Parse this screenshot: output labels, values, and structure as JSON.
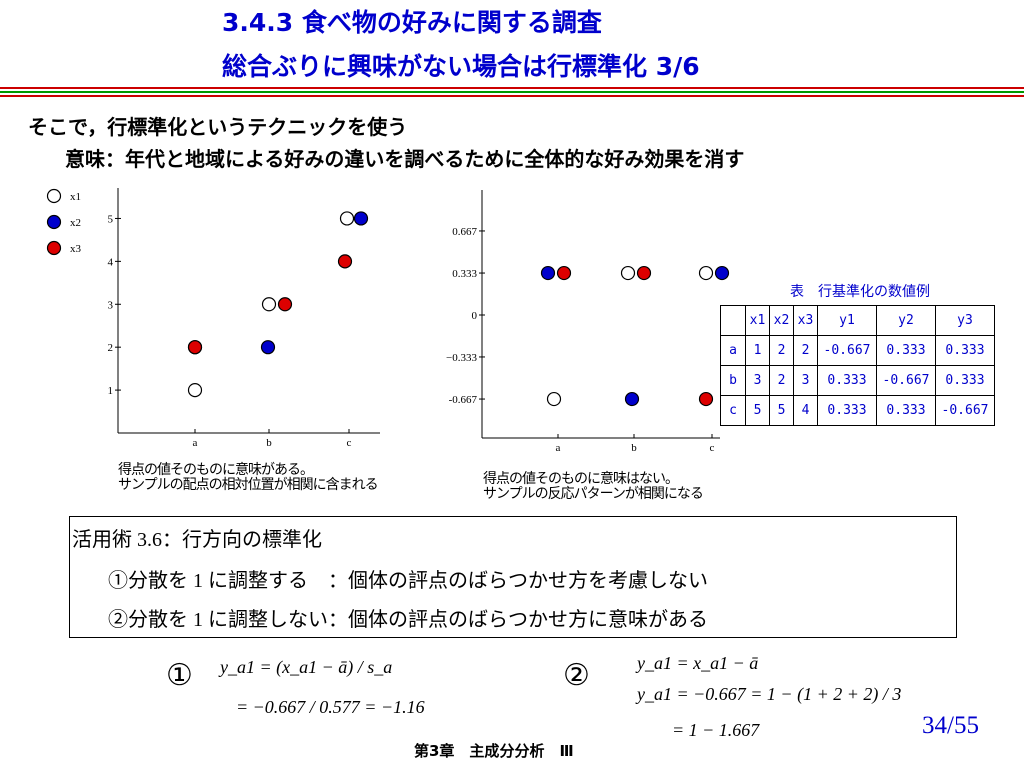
{
  "title": {
    "line1": "3.4.3  食べ物の好みに関する調査",
    "line2": "総合ぶりに興味がない場合は行標準化  3/6"
  },
  "intro": {
    "line1": "そこで，行標準化というテクニックを使う",
    "line2": "意味：年代と地域による好みの違いを調べるために全体的な好み効果を消す"
  },
  "colors": {
    "title": "#0000cc",
    "rule_red": "#cc0000",
    "rule_green": "#009900",
    "x1": "#ffffff",
    "x2": "#0000cc",
    "x3": "#dd0000"
  },
  "chart_data": [
    {
      "type": "scatter",
      "categories": [
        "a",
        "b",
        "c"
      ],
      "ylim": [
        0,
        5.5
      ],
      "yticks": [
        1,
        2,
        3,
        4,
        5
      ],
      "legend": {
        "placement": "top-left",
        "entries": [
          "x1",
          "x2",
          "x3"
        ]
      },
      "series": [
        {
          "name": "x1",
          "values": [
            1,
            3,
            5
          ]
        },
        {
          "name": "x2",
          "values": [
            2,
            2,
            5
          ]
        },
        {
          "name": "x3",
          "values": [
            2,
            3,
            4
          ]
        }
      ],
      "caption": [
        "得点の値そのものに意味がある。",
        "サンプルの配点の相対位置が相関に含まれる"
      ]
    },
    {
      "type": "scatter",
      "categories": [
        "a",
        "b",
        "c"
      ],
      "ylim": [
        -1,
        1
      ],
      "yticks": [
        "0.667",
        "0.333",
        "0",
        "−0.333",
        "-0.667"
      ],
      "series": [
        {
          "name": "x1",
          "values": [
            -0.667,
            0.333,
            0.333
          ]
        },
        {
          "name": "x2",
          "values": [
            0.333,
            -0.667,
            0.333
          ]
        },
        {
          "name": "x3",
          "values": [
            0.333,
            0.333,
            -0.667
          ]
        }
      ],
      "caption": [
        "得点の値そのものに意味はない。",
        "サンプルの反応パターンが相関になる"
      ]
    }
  ],
  "table": {
    "title": "表　行基準化の数値例",
    "headers": [
      "",
      "x1",
      "x2",
      "x3",
      "y1",
      "y2",
      "y3"
    ],
    "rows": [
      [
        "a",
        "1",
        "2",
        "2",
        "-0.667",
        "0.333",
        "0.333"
      ],
      [
        "b",
        "3",
        "2",
        "3",
        "0.333",
        "-0.667",
        "0.333"
      ],
      [
        "c",
        "5",
        "5",
        "4",
        "0.333",
        "0.333",
        "-0.667"
      ]
    ]
  },
  "box": {
    "heading": "活用術 3.6：行方向の標準化",
    "item1": "①分散を 1 に調整する　：個体の評点のばらつかせ方を考慮しない",
    "item2": "②分散を 1 に調整しない：個体の評点のばらつかせ方に意味がある"
  },
  "formulas": {
    "mark1": "①",
    "f1_line1": "y_a1 = (x_a1 − ā) / s_a",
    "f1_line2": "= −0.667 / 0.577 = −1.16",
    "mark2": "②",
    "f2_line1": "y_a1 = x_a1 − ā",
    "f2_line2": "y_a1 = −0.667 = 1 − (1 + 2 + 2) / 3",
    "f2_line3": "= 1 − 1.667"
  },
  "footer": {
    "chapter": "第3章　主成分分析　Ⅲ",
    "page": "34/55"
  }
}
